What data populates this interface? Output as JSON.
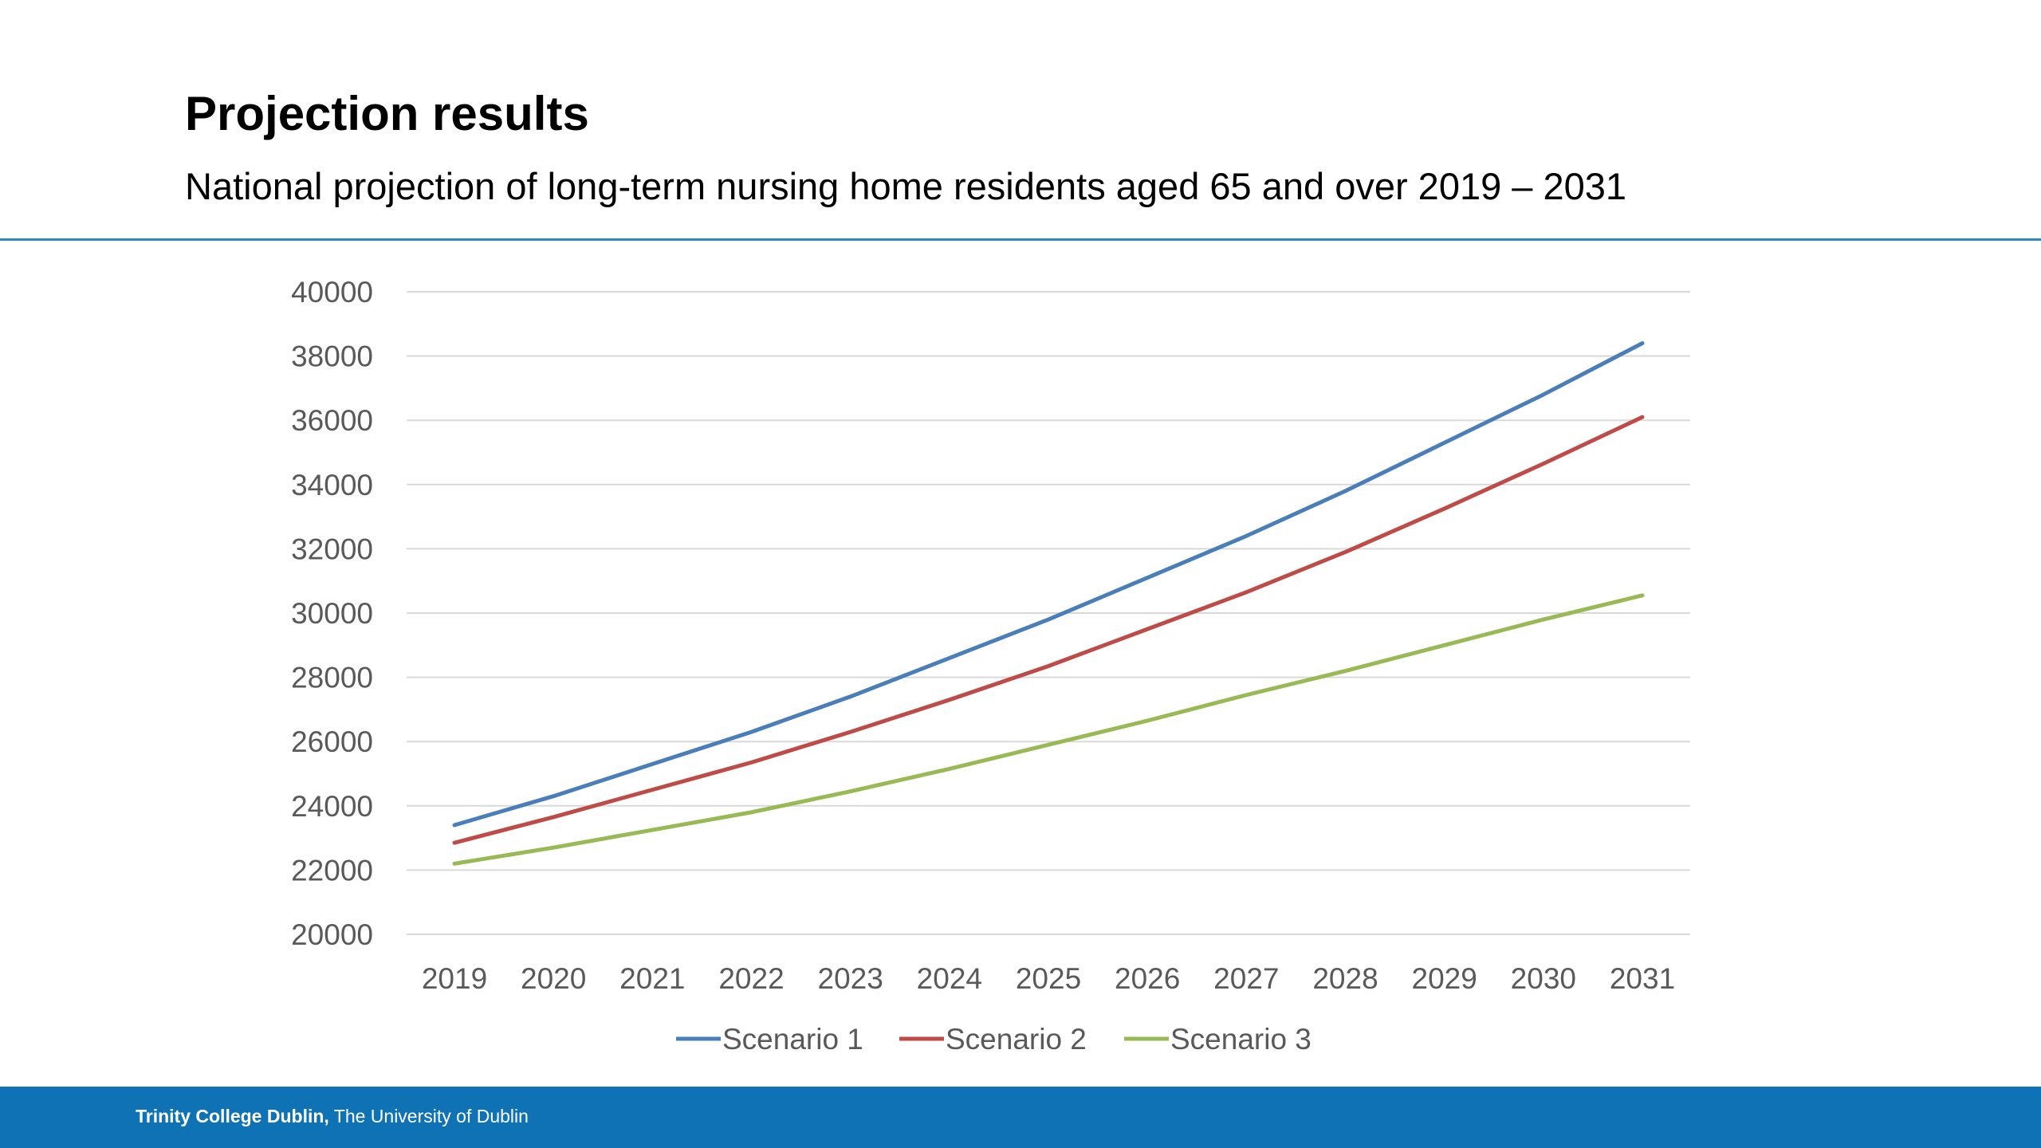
{
  "slide": {
    "title": "Projection results",
    "subtitle": "National projection of long-term nursing home residents aged 65 and over  2019 – 2031",
    "footer_bold": "Trinity College Dublin,",
    "footer_regular": " The University of Dublin"
  },
  "colors": {
    "rule": "#2b8cc4",
    "footer_bg": "#0e72b5",
    "grid": "#d9d9d9",
    "text": "#595959"
  },
  "chart_data": {
    "type": "line",
    "title": "",
    "xlabel": "",
    "ylabel": "",
    "x": [
      2019,
      2020,
      2021,
      2022,
      2023,
      2024,
      2025,
      2026,
      2027,
      2028,
      2029,
      2030,
      2031
    ],
    "yticks": [
      20000,
      22000,
      24000,
      26000,
      28000,
      30000,
      32000,
      34000,
      36000,
      38000,
      40000
    ],
    "ylim": [
      20000,
      40000
    ],
    "grid": true,
    "legend_position": "bottom",
    "series": [
      {
        "name": "Scenario 1",
        "color": "#4a7ebb",
        "values": [
          23400,
          24300,
          25300,
          26300,
          27400,
          28600,
          29800,
          31100,
          32400,
          33800,
          35300,
          36800,
          38400
        ]
      },
      {
        "name": "Scenario 2",
        "color": "#be4b48",
        "values": [
          22850,
          23650,
          24500,
          25350,
          26300,
          27300,
          28350,
          29500,
          30650,
          31900,
          33250,
          34650,
          36100
        ]
      },
      {
        "name": "Scenario 3",
        "color": "#98b954",
        "values": [
          22200,
          22700,
          23250,
          23800,
          24450,
          25150,
          25900,
          26650,
          27450,
          28200,
          29000,
          29800,
          30550
        ]
      }
    ]
  }
}
